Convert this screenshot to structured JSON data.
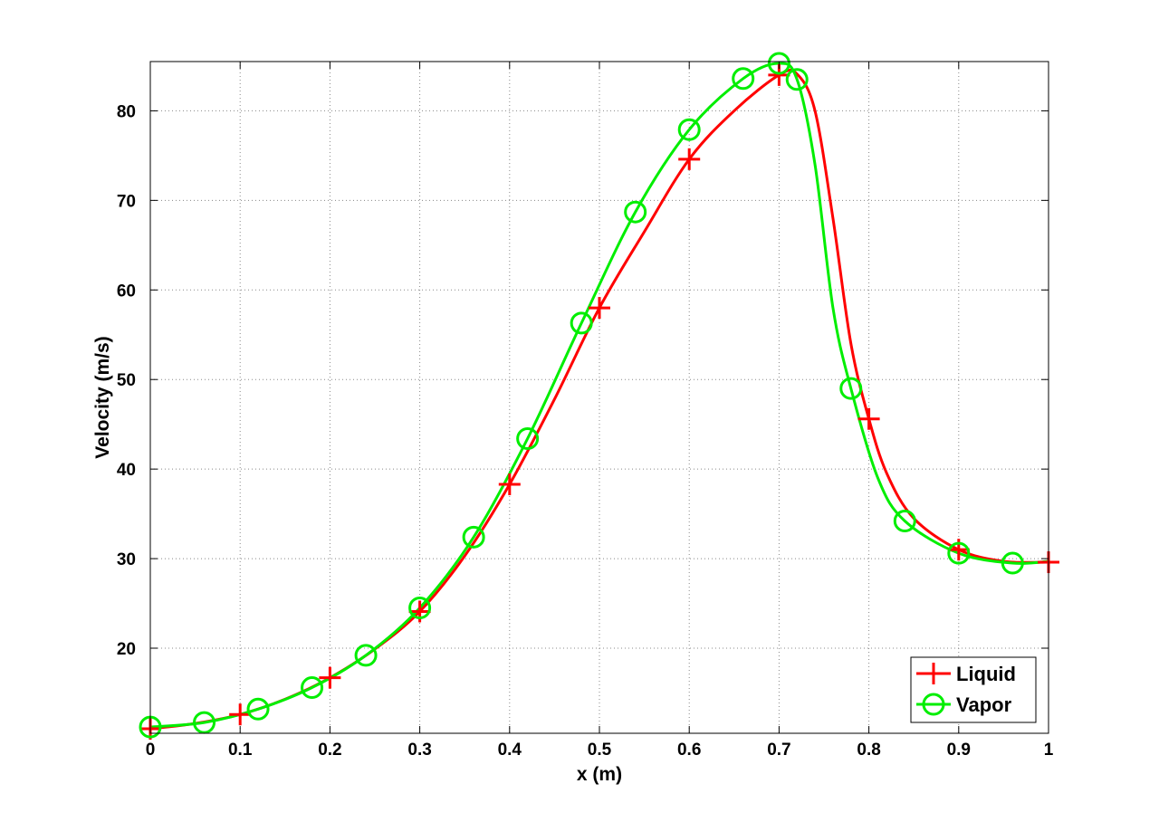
{
  "chart_data": {
    "type": "line",
    "title": "",
    "xlabel": "x (m)",
    "ylabel": "Velocity (m/s)",
    "xlim": [
      0,
      1
    ],
    "ylim": [
      10.5,
      85.5
    ],
    "xticks": [
      0,
      0.1,
      0.2,
      0.3,
      0.4,
      0.5,
      0.6,
      0.7,
      0.8,
      0.9,
      1
    ],
    "xtick_labels": [
      "0",
      "0.1",
      "0.2",
      "0.3",
      "0.4",
      "0.5",
      "0.6",
      "0.7",
      "0.8",
      "0.9",
      "1"
    ],
    "yticks": [
      20,
      30,
      40,
      50,
      60,
      70,
      80
    ],
    "ytick_labels": [
      "20",
      "30",
      "40",
      "50",
      "60",
      "70",
      "80"
    ],
    "grid": true,
    "legend_position": "bottom-right",
    "series": [
      {
        "name": "Liquid",
        "color": "#ff0000",
        "marker": "plus",
        "curve": [
          [
            0.0,
            11.0
          ],
          [
            0.05,
            11.6
          ],
          [
            0.1,
            12.6
          ],
          [
            0.15,
            14.3
          ],
          [
            0.2,
            16.7
          ],
          [
            0.25,
            19.9
          ],
          [
            0.3,
            24.1
          ],
          [
            0.35,
            30.3
          ],
          [
            0.4,
            38.3
          ],
          [
            0.45,
            47.8
          ],
          [
            0.5,
            58.0
          ],
          [
            0.55,
            66.5
          ],
          [
            0.6,
            74.6
          ],
          [
            0.65,
            80.0
          ],
          [
            0.7,
            84.0
          ],
          [
            0.72,
            84.1
          ],
          [
            0.74,
            80.0
          ],
          [
            0.76,
            68.0
          ],
          [
            0.78,
            54.0
          ],
          [
            0.8,
            45.6
          ],
          [
            0.82,
            39.5
          ],
          [
            0.85,
            34.5
          ],
          [
            0.9,
            31.0
          ],
          [
            0.95,
            29.7
          ],
          [
            1.0,
            29.6
          ]
        ],
        "markers": [
          [
            0.0,
            11.0
          ],
          [
            0.1,
            12.6
          ],
          [
            0.2,
            16.7
          ],
          [
            0.3,
            24.1
          ],
          [
            0.4,
            38.3
          ],
          [
            0.5,
            58.0
          ],
          [
            0.6,
            74.6
          ],
          [
            0.7,
            84.0
          ],
          [
            0.8,
            45.6
          ],
          [
            0.9,
            31.0
          ],
          [
            1.0,
            29.6
          ]
        ]
      },
      {
        "name": "Vapor",
        "color": "#00ee00",
        "marker": "circle",
        "curve": [
          [
            0.0,
            11.2
          ],
          [
            0.06,
            11.7
          ],
          [
            0.12,
            13.2
          ],
          [
            0.18,
            15.6
          ],
          [
            0.24,
            19.2
          ],
          [
            0.3,
            24.5
          ],
          [
            0.36,
            32.4
          ],
          [
            0.42,
            43.4
          ],
          [
            0.48,
            56.3
          ],
          [
            0.54,
            68.7
          ],
          [
            0.6,
            77.9
          ],
          [
            0.66,
            83.6
          ],
          [
            0.7,
            85.3
          ],
          [
            0.72,
            83.5
          ],
          [
            0.74,
            74.0
          ],
          [
            0.76,
            58.0
          ],
          [
            0.78,
            49.0
          ],
          [
            0.81,
            39.0
          ],
          [
            0.84,
            34.2
          ],
          [
            0.9,
            30.6
          ],
          [
            0.96,
            29.5
          ],
          [
            1.0,
            29.7
          ]
        ],
        "markers": [
          [
            0.0,
            11.2
          ],
          [
            0.06,
            11.7
          ],
          [
            0.12,
            13.2
          ],
          [
            0.18,
            15.6
          ],
          [
            0.24,
            19.2
          ],
          [
            0.3,
            24.5
          ],
          [
            0.36,
            32.4
          ],
          [
            0.42,
            43.4
          ],
          [
            0.48,
            56.3
          ],
          [
            0.54,
            68.7
          ],
          [
            0.6,
            77.9
          ],
          [
            0.66,
            83.6
          ],
          [
            0.7,
            85.3
          ],
          [
            0.72,
            83.5
          ],
          [
            0.78,
            49.0
          ],
          [
            0.84,
            34.2
          ],
          [
            0.9,
            30.6
          ],
          [
            0.96,
            29.5
          ]
        ]
      }
    ]
  }
}
